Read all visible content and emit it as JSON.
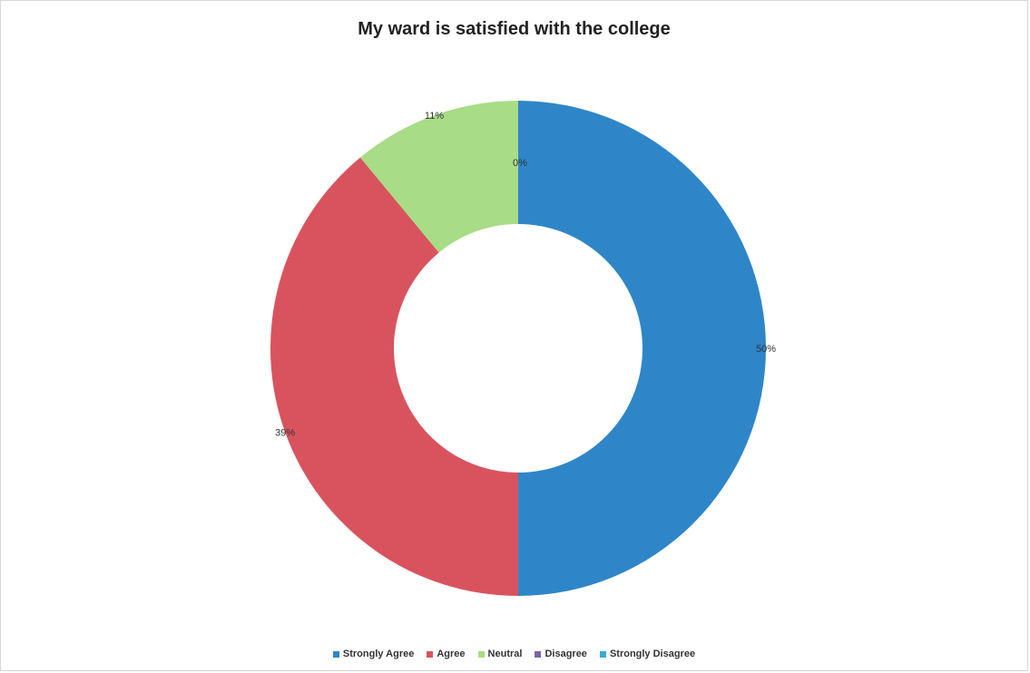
{
  "chart_data": {
    "type": "pie",
    "variant": "donut",
    "title": "My ward is satisfied with the college",
    "categories": [
      "Strongly Agree",
      "Agree",
      "Neutral",
      "Disagree",
      "Strongly Disagree"
    ],
    "values": [
      50,
      39,
      11,
      0,
      0
    ],
    "data_labels": [
      "50%",
      "39%",
      "11%",
      "0%",
      ""
    ],
    "colors": [
      "#2E86C8",
      "#D9535E",
      "#A8DC86",
      "#8064A2",
      "#3BA7D9"
    ],
    "legend_position": "bottom"
  }
}
